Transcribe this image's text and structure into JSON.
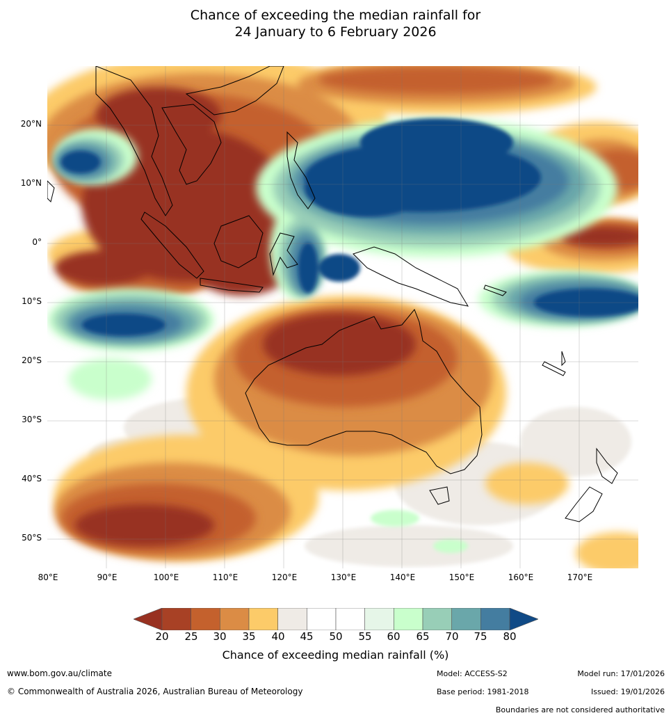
{
  "title": {
    "line1": "Chance of exceeding the median rainfall for",
    "line2": "24 January to 6 February 2026"
  },
  "map": {
    "region": "Australia, Maritime Continent and western Pacific",
    "lat_labels": [
      "20°N",
      "10°N",
      "0°",
      "10°S",
      "20°S",
      "30°S",
      "40°S",
      "50°S"
    ],
    "lon_labels": [
      "80°E",
      "90°E",
      "100°E",
      "110°E",
      "120°E",
      "130°E",
      "140°E",
      "150°E",
      "160°E",
      "170°E"
    ]
  },
  "legend": {
    "ticks": [
      "20",
      "25",
      "30",
      "35",
      "40",
      "45",
      "50",
      "55",
      "60",
      "65",
      "70",
      "75",
      "80"
    ],
    "colors": [
      "#983121",
      "#a84125",
      "#c4612d",
      "#db8c45",
      "#fccb69",
      "#efebe6",
      "#ffffff",
      "#ffffff",
      "#e6f6e8",
      "#c9ffcc",
      "#98ceb7",
      "#6aa7aa",
      "#447da0",
      "#104a86"
    ],
    "label": "Chance of exceeding median rainfall (%)"
  },
  "footer": {
    "website": "www.bom.gov.au/climate",
    "copyright": "© Commonwealth of Australia 2026, Australian Bureau of Meteorology",
    "model": "Model: ACCESS-S2",
    "base_period": "Base period: 1981-2018",
    "model_run": "Model run: 17/01/2026",
    "issued": "Issued: 19/01/2026",
    "disclaimer": "Boundaries are not considered authoritative"
  }
}
